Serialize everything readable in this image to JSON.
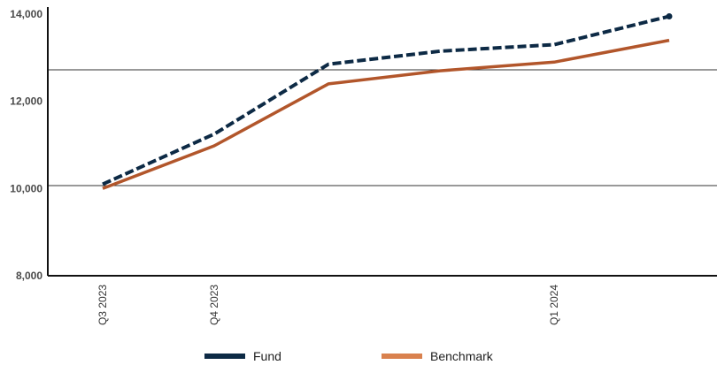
{
  "chart_data": {
    "type": "line",
    "title": "",
    "xlabel": "",
    "ylabel": "",
    "ylim": [
      8000,
      14000
    ],
    "y_ticks": [
      8000,
      10000,
      12000,
      14000
    ],
    "y_tick_labels": [
      "8,000",
      "10,000",
      "12,000",
      "14,000"
    ],
    "x": [
      "2023-07",
      "2023-10",
      "2024-01",
      "2024-02",
      "2024-04",
      "2024-06"
    ],
    "x_tick_labels": [
      {
        "x": "2023-07",
        "label": "Q3 2023"
      },
      {
        "x": "2023-10",
        "label": "Q4 2023"
      },
      {
        "x": "2024-04",
        "label": "Q1 2024"
      }
    ],
    "grid": "horizontal lines at 10,000 and 12,600",
    "legend_position": "bottom",
    "series": [
      {
        "name": "Fund",
        "color": "#0d2a45",
        "style": "dashed",
        "end_marker": true,
        "values": [
          10100,
          11250,
          12850,
          13150,
          13300,
          13950
        ]
      },
      {
        "name": "Benchmark",
        "color": "#b2562b",
        "legend_color": "#d9814e",
        "style": "solid",
        "values": [
          10000,
          10980,
          12400,
          12700,
          12900,
          13400
        ]
      }
    ]
  }
}
